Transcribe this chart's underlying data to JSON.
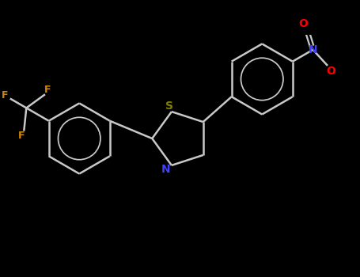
{
  "background_color": "#000000",
  "bond_color": "#c8c8c8",
  "atom_colors": {
    "S": "#808000",
    "N_thiazole": "#4040ff",
    "N_nitro": "#4040ff",
    "O": "#ff0000",
    "F": "#cc8800",
    "C": "#c8c8c8"
  },
  "figsize": [
    4.55,
    3.5
  ],
  "dpi": 100,
  "bond_lw": 1.8,
  "font_size": 9
}
